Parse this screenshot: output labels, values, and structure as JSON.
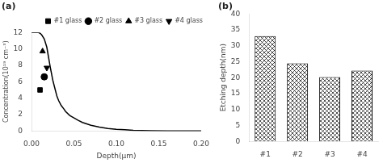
{
  "chart_data": [
    {
      "type": "line",
      "title": "(a)",
      "xlabel": "Depth(μm)",
      "ylabel": "Concentration(10¹⁹ cm⁻³)",
      "xlim": [
        0,
        0.2
      ],
      "xticks": [
        {
          "value": 0.0,
          "label": "0.00"
        },
        0.05,
        {
          "value": 0.1,
          "label": "0.10"
        },
        0.15,
        {
          "value": 0.2,
          "label": "0.20"
        }
      ],
      "ylim": [
        0,
        12
      ],
      "yticks": [
        0,
        2,
        4,
        6,
        8,
        10,
        12
      ],
      "grid": false,
      "legend": "upper right",
      "series": [
        {
          "type": "line",
          "color": "black",
          "x": [
            0.0,
            0.002,
            0.004,
            0.006,
            0.008,
            0.01,
            0.012,
            0.015,
            0.018,
            0.02,
            0.022,
            0.025,
            0.028,
            0.03,
            0.032,
            0.035,
            0.038,
            0.04,
            0.045,
            0.05,
            0.055,
            0.06,
            0.07,
            0.08,
            0.09,
            0.1,
            0.11,
            0.12,
            0.14,
            0.16,
            0.18,
            0.2
          ],
          "values": [
            12.0,
            12.0,
            12.0,
            12.0,
            12.0,
            11.9,
            11.7,
            11.2,
            10.2,
            9.0,
            7.8,
            6.2,
            5.0,
            4.2,
            3.7,
            3.1,
            2.7,
            2.4,
            1.9,
            1.6,
            1.3,
            1.05,
            0.7,
            0.48,
            0.32,
            0.22,
            0.15,
            0.1,
            0.05,
            0.02,
            0.01,
            0.005
          ]
        },
        {
          "name": "#1 glass",
          "type": "scatter",
          "marker": "square",
          "color": "black",
          "x": [
            0.01
          ],
          "values": [
            5.0
          ]
        },
        {
          "name": "#2 glass",
          "type": "scatter",
          "marker": "circle",
          "color": "black",
          "x": [
            0.015
          ],
          "values": [
            6.6
          ]
        },
        {
          "name": "#3 glass",
          "type": "scatter",
          "marker": "triangle_up",
          "color": "black",
          "x": [
            0.013
          ],
          "values": [
            9.7
          ]
        },
        {
          "name": "#4 glass",
          "type": "scatter",
          "marker": "triangle_down",
          "color": "black",
          "x": [
            0.018
          ],
          "values": [
            7.7
          ]
        }
      ]
    },
    {
      "type": "bar",
      "title": "(b)",
      "ylabel": "Etching depth(nm)",
      "categories": [
        "#1",
        "#2",
        "#3",
        "#4"
      ],
      "values": [
        33.0,
        24.5,
        20.2,
        22.2
      ],
      "color": "white",
      "ylim": [
        0,
        40
      ],
      "yticks": [
        0,
        5,
        10,
        15,
        20,
        25,
        30,
        35,
        40
      ],
      "grid": false
    }
  ]
}
